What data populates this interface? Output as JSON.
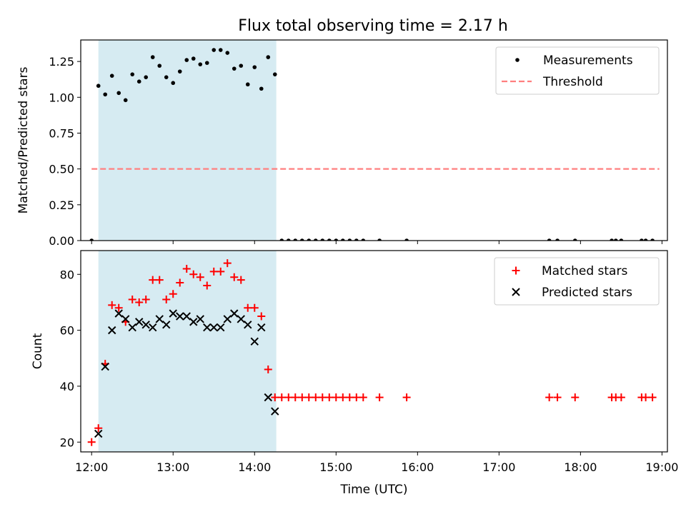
{
  "figure_title": "Flux total observing time = 2.17 h",
  "chart_data": [
    {
      "id": "ratio",
      "type": "scatter",
      "ylabel": "Matched/Predicted stars",
      "xlabel": "",
      "xlim": [
        "11:52",
        "19:04"
      ],
      "ylim": [
        0,
        1.4
      ],
      "yticks": [
        0.0,
        0.25,
        0.5,
        0.75,
        1.0,
        1.25
      ],
      "ytick_labels": [
        "0.00",
        "0.25",
        "0.50",
        "0.75",
        "1.00",
        "1.25"
      ],
      "xticks": [
        "12:00",
        "13:00",
        "14:00",
        "15:00",
        "16:00",
        "17:00",
        "18:00",
        "19:00"
      ],
      "show_xtick_labels": false,
      "grid": false,
      "legend": "top-right",
      "shaded_span": {
        "x": [
          "12:05",
          "14:16"
        ],
        "color": "#add8e6",
        "opacity": 0.5
      },
      "series": [
        {
          "name": "Measurements",
          "marker": "dot",
          "color": "#000000",
          "x": [
            "12:00",
            "12:05",
            "12:10",
            "12:15",
            "12:20",
            "12:25",
            "12:30",
            "12:35",
            "12:40",
            "12:45",
            "12:50",
            "12:55",
            "13:00",
            "13:05",
            "13:10",
            "13:15",
            "13:20",
            "13:25",
            "13:30",
            "13:35",
            "13:40",
            "13:45",
            "13:50",
            "13:55",
            "14:00",
            "14:05",
            "14:10",
            "14:15",
            "14:20",
            "14:25",
            "14:30",
            "14:35",
            "14:40",
            "14:45",
            "14:50",
            "14:55",
            "15:00",
            "15:05",
            "15:10",
            "15:15",
            "15:20",
            "15:32",
            "15:52",
            "17:37",
            "17:43",
            "17:56",
            "18:23",
            "18:26",
            "18:30",
            "18:45",
            "18:48",
            "18:53"
          ],
          "y": [
            0,
            1.08,
            1.02,
            1.15,
            1.03,
            0.98,
            1.16,
            1.11,
            1.14,
            1.28,
            1.22,
            1.14,
            1.1,
            1.18,
            1.26,
            1.27,
            1.23,
            1.24,
            1.33,
            1.33,
            1.31,
            1.2,
            1.22,
            1.09,
            1.21,
            1.06,
            1.28,
            1.16,
            0,
            0,
            0,
            0,
            0,
            0,
            0,
            0,
            0,
            0,
            0,
            0,
            0,
            0,
            0,
            0,
            0,
            0,
            0,
            0,
            0,
            0,
            0,
            0
          ]
        },
        {
          "name": "Threshold",
          "marker": "dashed-line",
          "color": "#ff7f7f",
          "x": [
            "12:00",
            "18:58"
          ],
          "y": [
            0.5,
            0.5
          ]
        }
      ]
    },
    {
      "id": "counts",
      "type": "scatter",
      "ylabel": "Count",
      "xlabel": "Time (UTC)",
      "xlim": [
        "11:52",
        "19:04"
      ],
      "ylim": [
        16.5,
        88.5
      ],
      "yticks": [
        20,
        40,
        60,
        80
      ],
      "ytick_labels": [
        "20",
        "40",
        "60",
        "80"
      ],
      "xticks": [
        "12:00",
        "13:00",
        "14:00",
        "15:00",
        "16:00",
        "17:00",
        "18:00",
        "19:00"
      ],
      "xtick_labels": [
        "12:00",
        "13:00",
        "14:00",
        "15:00",
        "16:00",
        "17:00",
        "18:00",
        "19:00"
      ],
      "grid": false,
      "legend": "top-right",
      "shaded_span": {
        "x": [
          "12:05",
          "14:16"
        ],
        "color": "#add8e6",
        "opacity": 0.5
      },
      "series": [
        {
          "name": "Matched stars",
          "marker": "plus",
          "color": "#ff0000",
          "x": [
            "12:00",
            "12:05",
            "12:10",
            "12:15",
            "12:20",
            "12:25",
            "12:30",
            "12:35",
            "12:40",
            "12:45",
            "12:50",
            "12:55",
            "13:00",
            "13:05",
            "13:10",
            "13:15",
            "13:20",
            "13:25",
            "13:30",
            "13:35",
            "13:40",
            "13:45",
            "13:50",
            "13:55",
            "14:00",
            "14:05",
            "14:10",
            "14:15",
            "14:20",
            "14:25",
            "14:30",
            "14:35",
            "14:40",
            "14:45",
            "14:50",
            "14:55",
            "15:00",
            "15:05",
            "15:10",
            "15:15",
            "15:20",
            "15:32",
            "15:52",
            "17:37",
            "17:43",
            "17:56",
            "18:23",
            "18:26",
            "18:30",
            "18:45",
            "18:48",
            "18:53"
          ],
          "y": [
            20,
            25,
            48,
            69,
            68,
            63,
            71,
            70,
            71,
            78,
            78,
            71,
            73,
            77,
            82,
            80,
            79,
            76,
            81,
            81,
            84,
            79,
            78,
            68,
            68,
            65,
            46,
            36,
            36,
            36,
            36,
            36,
            36,
            36,
            36,
            36,
            36,
            36,
            36,
            36,
            36,
            36,
            36,
            36,
            36,
            36,
            36,
            36,
            36,
            36,
            36,
            36
          ]
        },
        {
          "name": "Predicted stars",
          "marker": "x",
          "color": "#000000",
          "x": [
            "12:05",
            "12:10",
            "12:15",
            "12:20",
            "12:25",
            "12:30",
            "12:35",
            "12:40",
            "12:45",
            "12:50",
            "12:55",
            "13:00",
            "13:05",
            "13:10",
            "13:15",
            "13:20",
            "13:25",
            "13:30",
            "13:35",
            "13:40",
            "13:45",
            "13:50",
            "13:55",
            "14:00",
            "14:05",
            "14:10",
            "14:15"
          ],
          "y": [
            23,
            47,
            60,
            66,
            64,
            61,
            63,
            62,
            61,
            64,
            62,
            66,
            65,
            65,
            63,
            64,
            61,
            61,
            61,
            64,
            66,
            64,
            62,
            56,
            61,
            36,
            31
          ]
        }
      ]
    }
  ]
}
